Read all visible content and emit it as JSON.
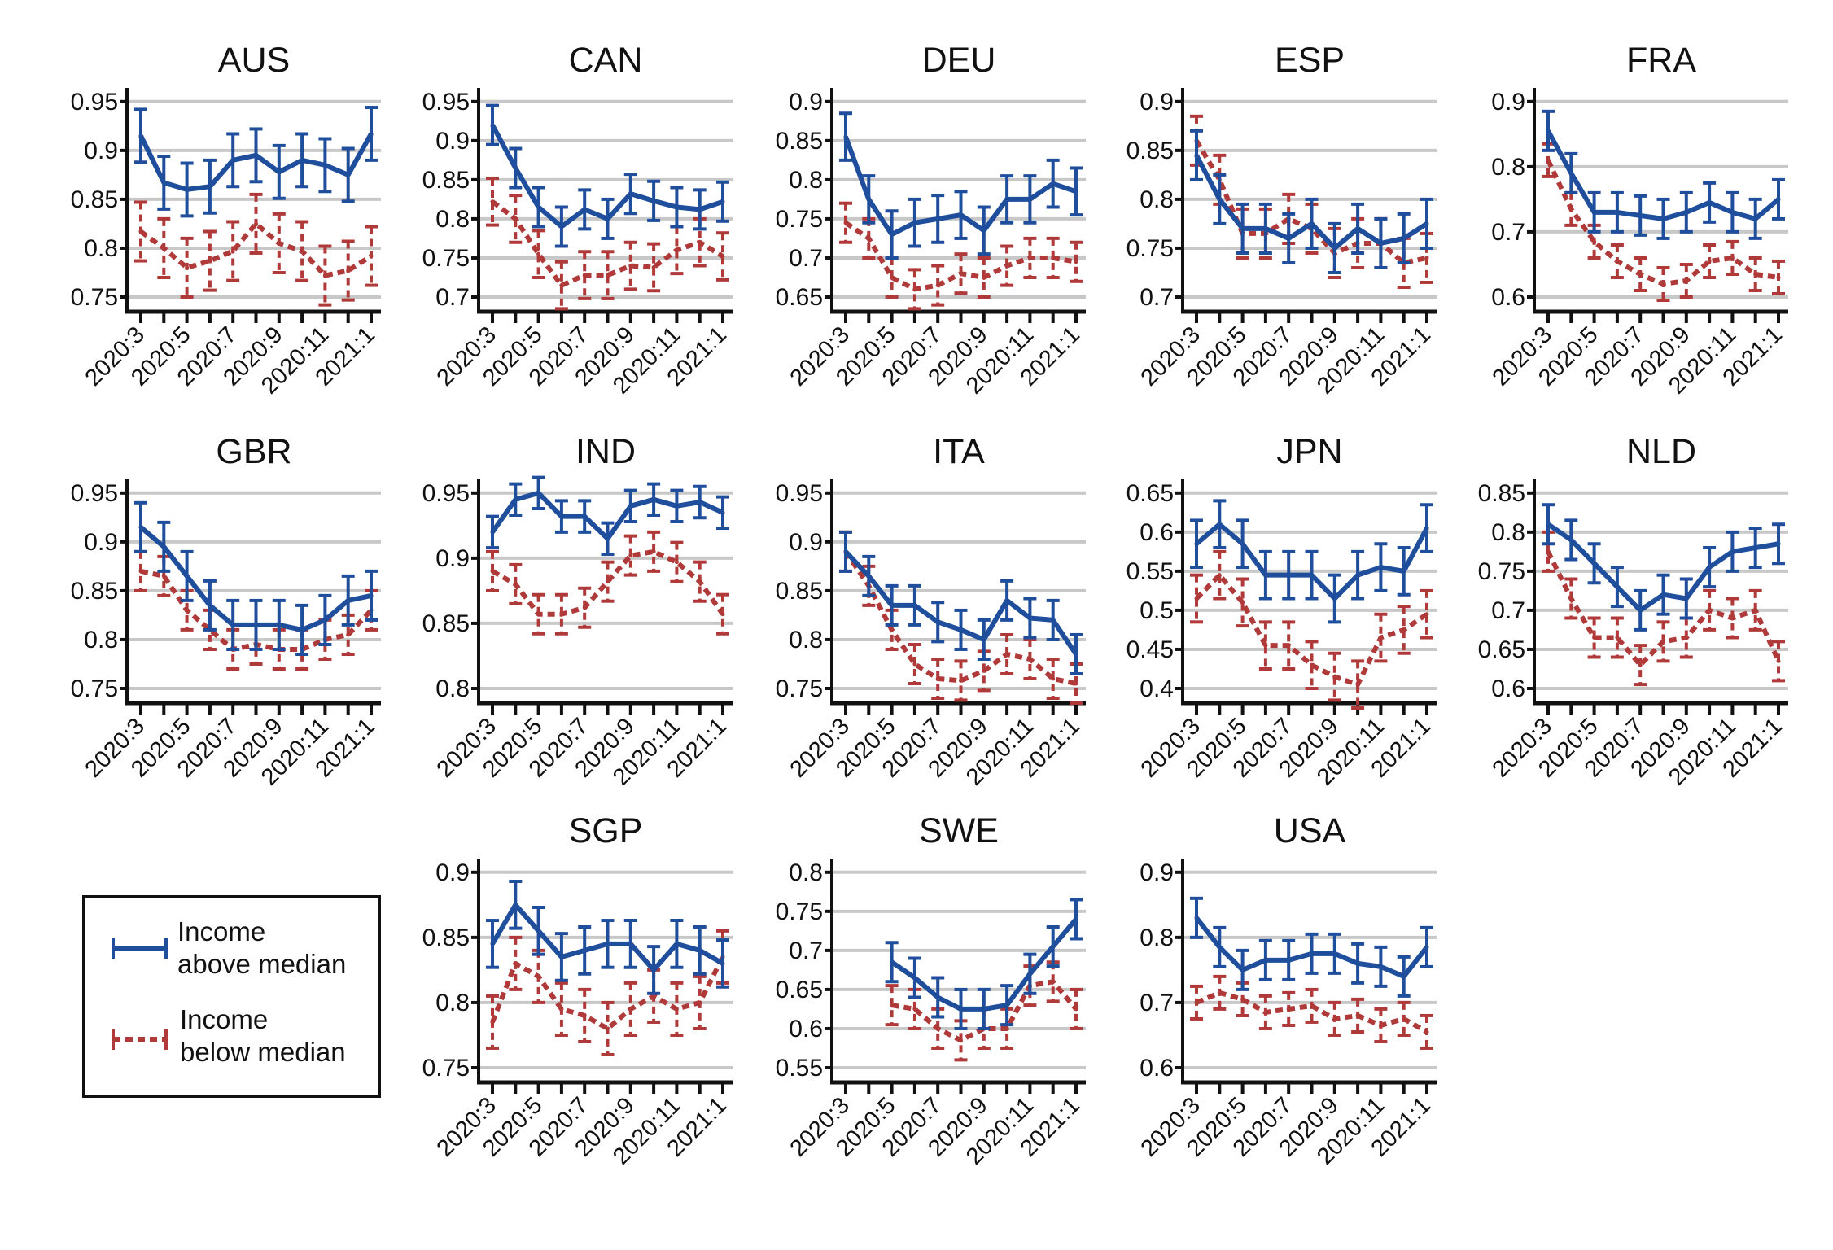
{
  "chart_data": {
    "type": "line",
    "x": [
      "2020:3",
      "2020:4",
      "2020:5",
      "2020:6",
      "2020:7",
      "2020:8",
      "2020:9",
      "2020:10",
      "2020:11",
      "2020:12",
      "2021:1"
    ],
    "x_tick_labels": [
      "2020:3",
      "2020:5",
      "2020:7",
      "2020:9",
      "2020:11",
      "2021:1"
    ],
    "grid": "horizontal",
    "legend": {
      "placement": "bottom-left",
      "entries": [
        {
          "line1": "Income",
          "line2": "above median",
          "style": "solid",
          "color": "#1f4e9c"
        },
        {
          "line1": "Income",
          "line2": "below median",
          "style": "dashed",
          "color": "#b03a3a"
        }
      ]
    },
    "colors": {
      "above": "#1f4e9c",
      "below": "#b03a3a",
      "grid": "#c8c8c8"
    },
    "panels": [
      {
        "title": "AUS",
        "yticks": [
          0.75,
          0.8,
          0.85,
          0.9,
          0.95
        ],
        "err": [
          0.027,
          0.03
        ],
        "above": [
          0.915,
          0.867,
          0.86,
          0.863,
          0.89,
          0.895,
          0.878,
          0.89,
          0.885,
          0.875,
          0.917
        ],
        "below": [
          0.817,
          0.8,
          0.78,
          0.787,
          0.797,
          0.825,
          0.805,
          0.797,
          0.772,
          0.777,
          0.792
        ]
      },
      {
        "title": "CAN",
        "yticks": [
          0.7,
          0.75,
          0.8,
          0.85,
          0.9,
          0.95
        ],
        "err": [
          0.025,
          0.03
        ],
        "above": [
          0.92,
          0.865,
          0.815,
          0.79,
          0.812,
          0.8,
          0.832,
          0.823,
          0.815,
          0.812,
          0.822
        ],
        "below": [
          0.822,
          0.8,
          0.755,
          0.715,
          0.728,
          0.728,
          0.74,
          0.738,
          0.76,
          0.77,
          0.752
        ]
      },
      {
        "title": "DEU",
        "yticks": [
          0.65,
          0.7,
          0.75,
          0.8,
          0.85,
          0.9
        ],
        "err": [
          0.03,
          0.025
        ],
        "above": [
          0.855,
          0.775,
          0.73,
          0.745,
          0.75,
          0.755,
          0.735,
          0.775,
          0.775,
          0.795,
          0.785
        ],
        "below": [
          0.745,
          0.725,
          0.675,
          0.66,
          0.665,
          0.68,
          0.675,
          0.69,
          0.7,
          0.7,
          0.695
        ]
      },
      {
        "title": "ESP",
        "yticks": [
          0.7,
          0.75,
          0.8,
          0.85,
          0.9
        ],
        "err": [
          0.025,
          0.025
        ],
        "above": [
          0.845,
          0.8,
          0.77,
          0.77,
          0.76,
          0.775,
          0.75,
          0.77,
          0.755,
          0.76,
          0.775
        ],
        "below": [
          0.86,
          0.82,
          0.765,
          0.765,
          0.78,
          0.77,
          0.745,
          0.755,
          0.755,
          0.735,
          0.74
        ]
      },
      {
        "title": "FRA",
        "yticks": [
          0.6,
          0.7,
          0.8,
          0.9
        ],
        "err": [
          0.03,
          0.025
        ],
        "above": [
          0.855,
          0.79,
          0.73,
          0.73,
          0.725,
          0.72,
          0.73,
          0.745,
          0.73,
          0.72,
          0.75
        ],
        "below": [
          0.81,
          0.735,
          0.685,
          0.655,
          0.635,
          0.62,
          0.625,
          0.655,
          0.66,
          0.635,
          0.63
        ]
      },
      {
        "title": "GBR",
        "yticks": [
          0.75,
          0.8,
          0.85,
          0.9,
          0.95
        ],
        "err": [
          0.025,
          0.02
        ],
        "above": [
          0.915,
          0.895,
          0.865,
          0.835,
          0.815,
          0.815,
          0.815,
          0.81,
          0.82,
          0.84,
          0.845
        ],
        "below": [
          0.87,
          0.865,
          0.83,
          0.81,
          0.79,
          0.795,
          0.79,
          0.79,
          0.8,
          0.805,
          0.83
        ]
      },
      {
        "title": "IND",
        "yticks": [
          0.8,
          0.85,
          0.9,
          0.95
        ],
        "err": [
          0.012,
          0.015
        ],
        "above": [
          0.92,
          0.945,
          0.95,
          0.932,
          0.932,
          0.915,
          0.94,
          0.945,
          0.94,
          0.943,
          0.935
        ],
        "below": [
          0.89,
          0.88,
          0.857,
          0.857,
          0.862,
          0.882,
          0.902,
          0.905,
          0.897,
          0.882,
          0.857
        ]
      },
      {
        "title": "ITA",
        "yticks": [
          0.75,
          0.8,
          0.85,
          0.9,
          0.95
        ],
        "err": [
          0.02,
          0.02
        ],
        "above": [
          0.89,
          0.865,
          0.835,
          0.835,
          0.818,
          0.81,
          0.8,
          0.84,
          0.822,
          0.82,
          0.785
        ],
        "below": [
          0.89,
          0.855,
          0.81,
          0.775,
          0.76,
          0.758,
          0.768,
          0.785,
          0.78,
          0.76,
          0.755
        ]
      },
      {
        "title": "JPN",
        "yticks": [
          0.4,
          0.45,
          0.5,
          0.55,
          0.6,
          0.65
        ],
        "err": [
          0.03,
          0.03
        ],
        "above": [
          0.585,
          0.61,
          0.585,
          0.545,
          0.545,
          0.545,
          0.515,
          0.545,
          0.555,
          0.55,
          0.605
        ],
        "below": [
          0.515,
          0.545,
          0.51,
          0.455,
          0.455,
          0.43,
          0.415,
          0.405,
          0.465,
          0.475,
          0.495
        ]
      },
      {
        "title": "NLD",
        "yticks": [
          0.6,
          0.65,
          0.7,
          0.75,
          0.8,
          0.85
        ],
        "err": [
          0.025,
          0.025
        ],
        "above": [
          0.81,
          0.79,
          0.76,
          0.73,
          0.7,
          0.72,
          0.715,
          0.755,
          0.775,
          0.78,
          0.785
        ],
        "below": [
          0.775,
          0.715,
          0.665,
          0.665,
          0.63,
          0.66,
          0.665,
          0.7,
          0.69,
          0.7,
          0.635
        ]
      },
      {
        "title": "SGP",
        "yticks": [
          0.75,
          0.8,
          0.85,
          0.9
        ],
        "err": [
          0.018,
          0.02
        ],
        "above": [
          0.845,
          0.875,
          0.855,
          0.835,
          0.84,
          0.845,
          0.845,
          0.825,
          0.845,
          0.84,
          0.83
        ],
        "below": [
          0.785,
          0.83,
          0.82,
          0.795,
          0.79,
          0.78,
          0.795,
          0.805,
          0.795,
          0.8,
          0.835
        ]
      },
      {
        "title": "SWE",
        "yticks": [
          0.55,
          0.6,
          0.65,
          0.7,
          0.75,
          0.8
        ],
        "err": [
          0.025,
          0.025
        ],
        "above": [
          null,
          null,
          0.685,
          0.665,
          0.64,
          0.625,
          0.625,
          0.63,
          0.67,
          0.705,
          0.74
        ],
        "below": [
          null,
          null,
          0.63,
          0.625,
          0.6,
          0.585,
          0.6,
          0.6,
          0.655,
          0.66,
          0.625
        ]
      },
      {
        "title": "USA",
        "yticks": [
          0.6,
          0.7,
          0.8,
          0.9
        ],
        "err": [
          0.03,
          0.025
        ],
        "above": [
          0.83,
          0.785,
          0.75,
          0.765,
          0.765,
          0.775,
          0.775,
          0.76,
          0.755,
          0.74,
          0.785
        ],
        "below": [
          0.7,
          0.715,
          0.705,
          0.685,
          0.69,
          0.695,
          0.675,
          0.68,
          0.665,
          0.675,
          0.655
        ]
      }
    ]
  }
}
